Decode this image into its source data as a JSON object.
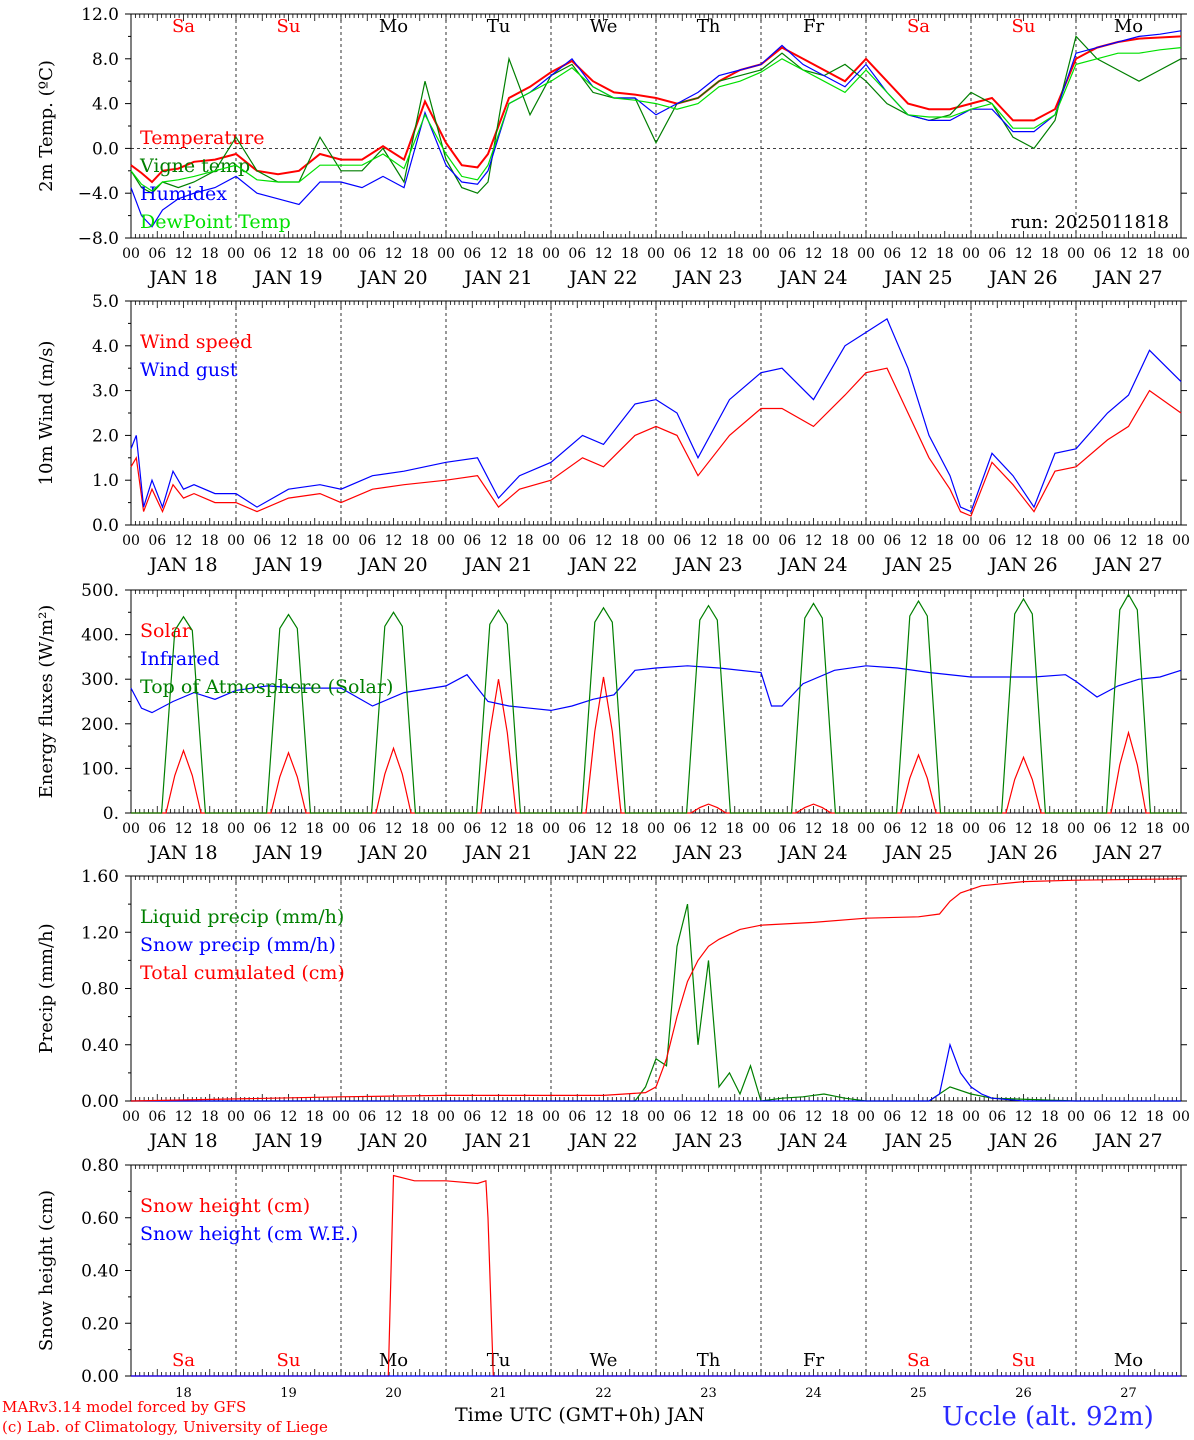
{
  "meta": {
    "run_label": "run: 2025011818",
    "credit_line1": "MARv3.14 model forced by GFS",
    "credit_line2": "(c) Lab. of Climatology, University of Liege",
    "station": "Uccle (alt. 92m)",
    "time_axis_title": "Time UTC (GMT+0h) JAN"
  },
  "colors": {
    "red": "#ff0000",
    "green": "#007f00",
    "blue": "#0000ff",
    "lightgreen": "#00e000",
    "weekend": "#ff0000",
    "weekday": "#000000"
  },
  "days": {
    "hour_ticks": [
      "00",
      "06",
      "12",
      "18"
    ],
    "dates": [
      "JAN 18",
      "JAN 19",
      "JAN 20",
      "JAN 21",
      "JAN 22",
      "JAN 23",
      "JAN 24",
      "JAN 25",
      "JAN 26",
      "JAN 27"
    ],
    "day_numbers": [
      "18",
      "19",
      "20",
      "21",
      "22",
      "23",
      "24",
      "25",
      "26",
      "27"
    ],
    "weekdays": [
      "Sa",
      "Su",
      "Mo",
      "Tu",
      "We",
      "Th",
      "Fr",
      "Sa",
      "Su",
      "Mo"
    ],
    "weekend_flags": [
      true,
      true,
      false,
      false,
      false,
      false,
      false,
      true,
      true,
      false
    ],
    "final_tick": "00"
  },
  "chart_data": [
    {
      "type": "line",
      "ylabel": "2m Temp. (ºC)",
      "yticks": [
        "12.0",
        "8.0",
        "4.0",
        "0.0",
        "−4.0",
        "−8.0"
      ],
      "ylim": [
        -8,
        12
      ],
      "zero_line": true,
      "show_weekdays_top": true,
      "series": [
        {
          "name": "Temperature",
          "color": "red",
          "x": [
            0,
            0.1,
            0.2,
            0.3,
            0.45,
            0.6,
            0.8,
            1,
            1.2,
            1.4,
            1.6,
            1.8,
            2,
            2.2,
            2.4,
            2.6,
            2.8,
            3,
            3.15,
            3.3,
            3.4,
            3.6,
            3.8,
            4,
            4.2,
            4.4,
            4.6,
            4.8,
            5,
            5.2,
            5.4,
            5.6,
            5.8,
            6,
            6.2,
            6.4,
            6.6,
            6.8,
            7,
            7.2,
            7.4,
            7.6,
            7.8,
            8,
            8.2,
            8.4,
            8.6,
            8.8,
            9,
            9.2,
            9.4,
            9.6,
            9.8,
            10
          ],
          "values": [
            -1.5,
            -2.2,
            -3,
            -2,
            -1.8,
            -1.2,
            -1,
            -0.5,
            -2,
            -2.3,
            -2,
            -0.5,
            -1,
            -1,
            0.2,
            -1,
            4.2,
            0.5,
            -1.5,
            -1.7,
            -0.5,
            4.5,
            5.5,
            6.8,
            7.8,
            6,
            5,
            4.8,
            4.5,
            4,
            4.5,
            6,
            7,
            7.5,
            9,
            8,
            7,
            6,
            8,
            6,
            4,
            3.5,
            3.5,
            4,
            4.5,
            2.5,
            2.5,
            3.5,
            8,
            9,
            9.5,
            9.8,
            9.9,
            10
          ]
        },
        {
          "name": "Vigne temp",
          "color": "green",
          "x": [
            0,
            0.1,
            0.2,
            0.3,
            0.45,
            0.6,
            0.8,
            1,
            1.2,
            1.4,
            1.6,
            1.8,
            2,
            2.2,
            2.4,
            2.6,
            2.8,
            3,
            3.15,
            3.3,
            3.4,
            3.6,
            3.8,
            4,
            4.2,
            4.4,
            4.6,
            4.8,
            5,
            5.2,
            5.4,
            5.6,
            5.8,
            6,
            6.2,
            6.4,
            6.6,
            6.8,
            7,
            7.2,
            7.4,
            7.6,
            7.8,
            8,
            8.2,
            8.4,
            8.6,
            8.8,
            9,
            9.2,
            9.4,
            9.6,
            9.8,
            10
          ],
          "values": [
            -2,
            -3.5,
            -4,
            -3,
            -3.5,
            -3,
            -2,
            1,
            -2,
            -3,
            -3,
            1,
            -2,
            -2,
            0,
            -3,
            6,
            -1,
            -3.5,
            -4,
            -3,
            8,
            3,
            6.5,
            7.5,
            5,
            4.5,
            4.5,
            0.5,
            4,
            4.5,
            6,
            6.5,
            7,
            8.5,
            7,
            6.5,
            7.5,
            6,
            4,
            3,
            2.5,
            3,
            5,
            4,
            1,
            0,
            2.5,
            10,
            8,
            7,
            6,
            7,
            8
          ]
        },
        {
          "name": "Humidex",
          "color": "blue",
          "x": [
            0,
            0.1,
            0.2,
            0.3,
            0.45,
            0.6,
            0.8,
            1,
            1.2,
            1.4,
            1.6,
            1.8,
            2,
            2.2,
            2.4,
            2.6,
            2.8,
            3,
            3.15,
            3.3,
            3.4,
            3.6,
            3.8,
            4,
            4.2,
            4.4,
            4.6,
            4.8,
            5,
            5.2,
            5.4,
            5.6,
            5.8,
            6,
            6.2,
            6.4,
            6.6,
            6.8,
            7,
            7.2,
            7.4,
            7.6,
            7.8,
            8,
            8.2,
            8.4,
            8.6,
            8.8,
            9,
            9.2,
            9.4,
            9.6,
            9.8,
            10
          ],
          "values": [
            -3.5,
            -6,
            -7,
            -5.5,
            -4.5,
            -4,
            -3.5,
            -2.5,
            -4,
            -4.5,
            -5,
            -3,
            -3,
            -3.5,
            -2.5,
            -3.5,
            3.2,
            -1.5,
            -3,
            -3.2,
            -2,
            4,
            5,
            6.5,
            8,
            5.5,
            4.5,
            4.5,
            3,
            4,
            5,
            6.5,
            7,
            7.5,
            9.2,
            7.5,
            6.5,
            5.5,
            7.5,
            5,
            3,
            2.5,
            2.5,
            3.5,
            3.5,
            1.5,
            1.5,
            3,
            8.5,
            9,
            9.5,
            10,
            10.2,
            10.5
          ]
        },
        {
          "name": "DewPoint Temp",
          "color": "lightgreen",
          "x": [
            0,
            0.1,
            0.2,
            0.3,
            0.45,
            0.6,
            0.8,
            1,
            1.2,
            1.4,
            1.6,
            1.8,
            2,
            2.2,
            2.4,
            2.6,
            2.8,
            3,
            3.15,
            3.3,
            3.4,
            3.6,
            3.8,
            4,
            4.2,
            4.4,
            4.6,
            4.8,
            5,
            5.2,
            5.4,
            5.6,
            5.8,
            6,
            6.2,
            6.4,
            6.6,
            6.8,
            7,
            7.2,
            7.4,
            7.6,
            7.8,
            8,
            8.2,
            8.4,
            8.6,
            8.8,
            9,
            9.2,
            9.4,
            9.6,
            9.8,
            10
          ],
          "values": [
            -2,
            -3.2,
            -3.8,
            -3,
            -2.8,
            -2.5,
            -2,
            -1.5,
            -2.8,
            -3,
            -3,
            -1.5,
            -1.5,
            -1.5,
            -0.5,
            -1.8,
            3,
            -0.5,
            -2.5,
            -2.8,
            -1.5,
            4,
            5,
            6,
            7.2,
            5.5,
            4.5,
            4.3,
            4,
            3.5,
            4,
            5.5,
            6,
            6.8,
            8,
            7,
            6,
            5,
            7,
            5,
            3,
            2.8,
            2.8,
            3.5,
            4,
            1.8,
            1.8,
            3,
            7.5,
            8,
            8.5,
            8.5,
            8.8,
            9
          ]
        }
      ]
    },
    {
      "type": "line",
      "ylabel": "10m Wind (m/s)",
      "yticks": [
        "5.0",
        "4.0",
        "3.0",
        "2.0",
        "1.0",
        "0.0"
      ],
      "ylim": [
        0,
        5
      ],
      "series": [
        {
          "name": "Wind speed",
          "color": "red",
          "x": [
            0,
            0.05,
            0.12,
            0.2,
            0.3,
            0.4,
            0.5,
            0.6,
            0.8,
            1,
            1.2,
            1.5,
            1.8,
            2,
            2.3,
            2.6,
            3,
            3.3,
            3.5,
            3.7,
            4,
            4.3,
            4.5,
            4.8,
            5,
            5.2,
            5.4,
            5.7,
            6,
            6.2,
            6.5,
            6.8,
            7,
            7.2,
            7.4,
            7.6,
            7.8,
            7.9,
            8,
            8.2,
            8.4,
            8.6,
            8.8,
            9,
            9.3,
            9.5,
            9.7,
            10
          ],
          "values": [
            1.3,
            1.5,
            0.3,
            0.8,
            0.3,
            0.9,
            0.6,
            0.7,
            0.5,
            0.5,
            0.3,
            0.6,
            0.7,
            0.5,
            0.8,
            0.9,
            1.0,
            1.1,
            0.4,
            0.8,
            1.0,
            1.5,
            1.3,
            2.0,
            2.2,
            2.0,
            1.1,
            2.0,
            2.6,
            2.6,
            2.2,
            2.9,
            3.4,
            3.5,
            2.5,
            1.5,
            0.8,
            0.3,
            0.2,
            1.4,
            0.9,
            0.3,
            1.2,
            1.3,
            1.9,
            2.2,
            3.0,
            2.5
          ]
        },
        {
          "name": "Wind gust",
          "color": "blue",
          "x": [
            0,
            0.05,
            0.12,
            0.2,
            0.3,
            0.4,
            0.5,
            0.6,
            0.8,
            1,
            1.2,
            1.5,
            1.8,
            2,
            2.3,
            2.6,
            3,
            3.3,
            3.5,
            3.7,
            4,
            4.3,
            4.5,
            4.8,
            5,
            5.2,
            5.4,
            5.7,
            6,
            6.2,
            6.5,
            6.8,
            7,
            7.2,
            7.4,
            7.6,
            7.8,
            7.9,
            8,
            8.2,
            8.4,
            8.6,
            8.8,
            9,
            9.3,
            9.5,
            9.7,
            10
          ],
          "values": [
            1.7,
            2.0,
            0.4,
            1.0,
            0.4,
            1.2,
            0.8,
            0.9,
            0.7,
            0.7,
            0.4,
            0.8,
            0.9,
            0.8,
            1.1,
            1.2,
            1.4,
            1.5,
            0.6,
            1.1,
            1.4,
            2.0,
            1.8,
            2.7,
            2.8,
            2.5,
            1.5,
            2.8,
            3.4,
            3.5,
            2.8,
            4.0,
            4.3,
            4.6,
            3.5,
            2.0,
            1.1,
            0.4,
            0.3,
            1.6,
            1.1,
            0.4,
            1.6,
            1.7,
            2.5,
            2.9,
            3.9,
            3.2
          ]
        }
      ]
    },
    {
      "type": "line",
      "ylabel": "Energy fluxes (W/m²)",
      "yticks": [
        "500.",
        "400.",
        "300.",
        "200.",
        "100.",
        "0."
      ],
      "ylim": [
        0,
        500
      ],
      "series": [
        {
          "name": "Solar",
          "color": "red",
          "daily_peaks": [
            140,
            135,
            145,
            300,
            305,
            20,
            20,
            130,
            125,
            180
          ]
        },
        {
          "name": "Infrared",
          "color": "blue",
          "x": [
            0,
            0.1,
            0.2,
            0.4,
            0.6,
            0.8,
            1,
            1.3,
            1.6,
            2,
            2.3,
            2.6,
            3,
            3.2,
            3.4,
            3.6,
            3.8,
            4,
            4.2,
            4.4,
            4.6,
            4.8,
            5,
            5.3,
            5.6,
            6,
            6.1,
            6.2,
            6.4,
            6.7,
            7,
            7.3,
            7.6,
            8,
            8.3,
            8.6,
            8.9,
            9,
            9.2,
            9.4,
            9.6,
            9.8,
            10
          ],
          "values": [
            280,
            235,
            225,
            250,
            270,
            255,
            275,
            285,
            280,
            280,
            240,
            270,
            285,
            310,
            250,
            240,
            235,
            230,
            240,
            255,
            265,
            320,
            325,
            330,
            325,
            315,
            240,
            240,
            290,
            320,
            330,
            325,
            315,
            305,
            305,
            305,
            310,
            295,
            260,
            285,
            300,
            305,
            320
          ]
        },
        {
          "name": "Top of Atmosphere (Solar)",
          "color": "green",
          "daily_peaks": [
            440,
            445,
            450,
            455,
            460,
            465,
            470,
            475,
            480,
            490
          ]
        }
      ]
    },
    {
      "type": "line",
      "ylabel": "Precip (mm/h)",
      "yticks": [
        "1.60",
        "1.20",
        "0.80",
        "0.40",
        "0.00"
      ],
      "ylim": [
        0,
        1.6
      ],
      "series": [
        {
          "name": "Liquid precip (mm/h)",
          "color": "green",
          "x": [
            0,
            4.8,
            4.9,
            5.0,
            5.1,
            5.2,
            5.3,
            5.4,
            5.5,
            5.6,
            5.7,
            5.8,
            5.9,
            6.0,
            6.2,
            6.4,
            6.6,
            6.8,
            7.0,
            7.6,
            7.8,
            8.0,
            8.2,
            9,
            10
          ],
          "values": [
            0,
            0,
            0.1,
            0.3,
            0.25,
            1.1,
            1.4,
            0.4,
            1.0,
            0.1,
            0.2,
            0.05,
            0.25,
            0,
            0.02,
            0.03,
            0.05,
            0.02,
            0,
            0,
            0.1,
            0.05,
            0.02,
            0,
            0
          ]
        },
        {
          "name": "Snow precip (mm/h)",
          "color": "blue",
          "x": [
            0,
            7.6,
            7.7,
            7.8,
            7.9,
            8.0,
            8.1,
            8.2,
            8.5,
            10
          ],
          "values": [
            0,
            0,
            0.05,
            0.4,
            0.2,
            0.1,
            0.05,
            0.02,
            0,
            0
          ]
        },
        {
          "name": "Total cumulated (cm)",
          "color": "red",
          "x": [
            0,
            2,
            3,
            4.5,
            4.9,
            5.0,
            5.1,
            5.2,
            5.3,
            5.4,
            5.5,
            5.6,
            5.8,
            6.0,
            6.5,
            7.0,
            7.5,
            7.7,
            7.8,
            7.9,
            8.1,
            8.5,
            9,
            10
          ],
          "values": [
            0,
            0.03,
            0.04,
            0.04,
            0.06,
            0.1,
            0.3,
            0.6,
            0.85,
            1.0,
            1.1,
            1.15,
            1.22,
            1.25,
            1.27,
            1.3,
            1.31,
            1.33,
            1.42,
            1.48,
            1.53,
            1.56,
            1.57,
            1.58
          ]
        }
      ]
    },
    {
      "type": "line",
      "ylabel": "Snow height (cm)",
      "yticks": [
        "0.80",
        "0.60",
        "0.40",
        "0.20",
        "0.00"
      ],
      "ylim": [
        0,
        0.8
      ],
      "show_weekdays_bottom": true,
      "series": [
        {
          "name": "Snow height (cm)",
          "color": "red",
          "x": [
            0,
            2.45,
            2.5,
            2.7,
            3.0,
            3.3,
            3.38,
            3.4,
            3.45,
            10
          ],
          "values": [
            0,
            0,
            0.76,
            0.74,
            0.74,
            0.73,
            0.74,
            0.6,
            0,
            0
          ]
        },
        {
          "name": "Snow height (cm W.E.)",
          "color": "blue",
          "x": [
            0,
            10
          ],
          "values": [
            0,
            0
          ]
        }
      ]
    }
  ]
}
